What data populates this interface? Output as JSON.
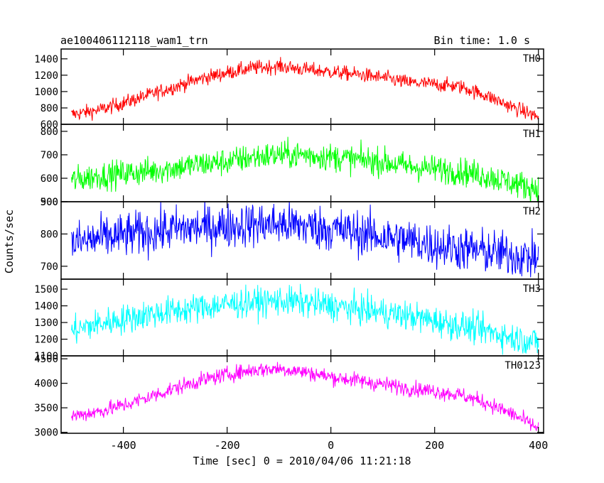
{
  "chart_data": {
    "type": "line",
    "title": "ae100406112118_wam1_trn",
    "bin_time": "Bin time: 1.0 s",
    "xlabel": "Time [sec] 0 = 2010/04/06 11:21:18",
    "ylabel": "Counts/sec",
    "xlim": [
      -520,
      410
    ],
    "x_ticks": [
      "-400",
      "-200",
      "0",
      "200",
      "400"
    ],
    "x_tick_values": [
      -400,
      -200,
      0,
      200,
      400
    ],
    "grid": false,
    "panels": [
      {
        "name": "TH0",
        "color": "#ff0000",
        "ylim": [
          600,
          1520
        ],
        "y_ticks": [
          "600",
          "800",
          "1000",
          "1200",
          "1400"
        ],
        "y_tick_values": [
          600,
          800,
          1000,
          1200,
          1400
        ],
        "x": [
          -500,
          -450,
          -400,
          -350,
          -300,
          -250,
          -200,
          -150,
          -100,
          -50,
          0,
          50,
          100,
          150,
          200,
          250,
          300,
          350,
          400
        ],
        "y": [
          720,
          770,
          860,
          960,
          1060,
          1160,
          1230,
          1290,
          1310,
          1270,
          1240,
          1210,
          1170,
          1110,
          1090,
          1060,
          950,
          810,
          690
        ],
        "noise": 45
      },
      {
        "name": "TH1",
        "color": "#00ff00",
        "ylim": [
          500,
          830
        ],
        "y_ticks": [
          "500",
          "600",
          "700",
          "800"
        ],
        "y_tick_values": [
          500,
          600,
          700,
          800
        ],
        "x": [
          -500,
          -450,
          -400,
          -350,
          -300,
          -250,
          -200,
          -150,
          -100,
          -50,
          0,
          50,
          100,
          150,
          200,
          250,
          300,
          350,
          400
        ],
        "y": [
          590,
          610,
          620,
          630,
          645,
          660,
          670,
          690,
          700,
          700,
          690,
          680,
          670,
          650,
          640,
          630,
          610,
          580,
          555
        ],
        "noise": 30
      },
      {
        "name": "TH2",
        "color": "#0000ff",
        "ylim": [
          660,
          900
        ],
        "y_ticks": [
          "700",
          "800",
          "900"
        ],
        "y_tick_values": [
          700,
          800,
          900
        ],
        "x": [
          -500,
          -450,
          -400,
          -350,
          -300,
          -250,
          -200,
          -150,
          -100,
          -50,
          0,
          50,
          100,
          150,
          200,
          250,
          300,
          350,
          400
        ],
        "y": [
          770,
          785,
          795,
          805,
          815,
          820,
          825,
          830,
          830,
          825,
          815,
          805,
          790,
          780,
          765,
          755,
          745,
          735,
          725
        ],
        "noise": 35
      },
      {
        "name": "TH3",
        "color": "#00ffff",
        "ylim": [
          1100,
          1560
        ],
        "y_ticks": [
          "1100",
          "1200",
          "1300",
          "1400",
          "1500"
        ],
        "y_tick_values": [
          1100,
          1200,
          1300,
          1400,
          1500
        ],
        "x": [
          -500,
          -450,
          -400,
          -350,
          -300,
          -250,
          -200,
          -150,
          -100,
          -50,
          0,
          50,
          100,
          150,
          200,
          250,
          300,
          350,
          400
        ],
        "y": [
          1250,
          1290,
          1320,
          1350,
          1370,
          1390,
          1410,
          1420,
          1430,
          1420,
          1400,
          1380,
          1360,
          1340,
          1310,
          1280,
          1250,
          1210,
          1180
        ],
        "noise": 45
      },
      {
        "name": "TH0123",
        "color": "#ff00ff",
        "ylim": [
          2980,
          4560
        ],
        "y_ticks": [
          "3000",
          "3500",
          "4000",
          "4500"
        ],
        "y_tick_values": [
          3000,
          3500,
          4000,
          4500
        ],
        "x": [
          -500,
          -450,
          -400,
          -350,
          -300,
          -250,
          -200,
          -150,
          -100,
          -50,
          0,
          50,
          100,
          150,
          200,
          250,
          300,
          350,
          400
        ],
        "y": [
          3330,
          3420,
          3550,
          3720,
          3900,
          4060,
          4180,
          4270,
          4300,
          4230,
          4130,
          4060,
          3980,
          3900,
          3840,
          3760,
          3600,
          3370,
          3080
        ],
        "noise": 80
      }
    ]
  }
}
